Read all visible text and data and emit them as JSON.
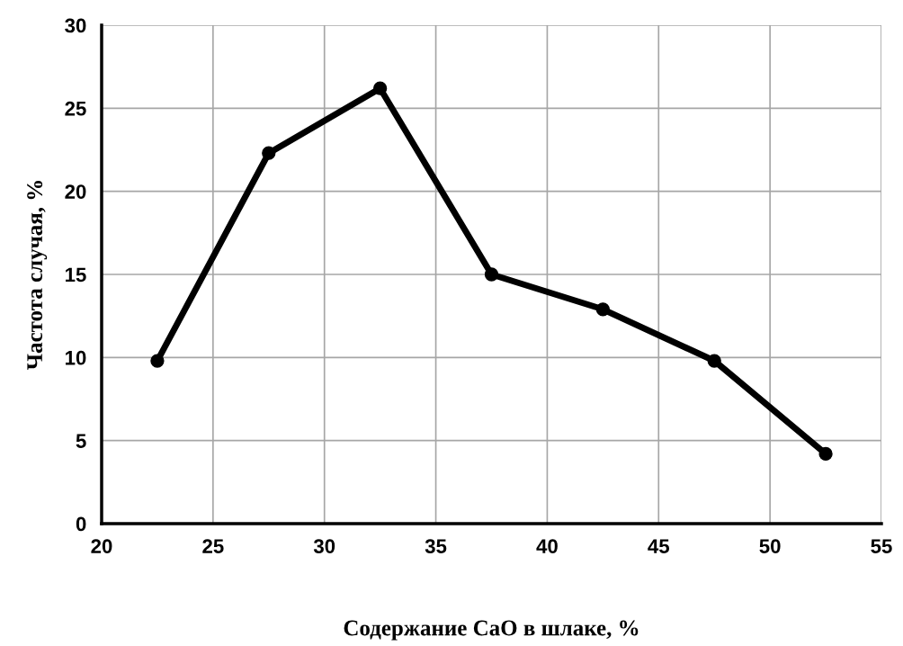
{
  "chart_data": {
    "type": "line",
    "xlabel": "Содержание CaO в шлаке, %",
    "ylabel": "Частота случая, %",
    "x": [
      22.5,
      27.5,
      32.5,
      37.5,
      42.5,
      47.5,
      52.5
    ],
    "series": [
      {
        "color": "#000000",
        "values": [
          9.8,
          22.3,
          26.2,
          15.0,
          12.9,
          9.8,
          4.2
        ]
      }
    ],
    "xlim": [
      20,
      55
    ],
    "xticks": [
      20,
      25,
      30,
      35,
      40,
      45,
      50,
      55
    ],
    "ylim": [
      0,
      30
    ],
    "yticks": [
      0,
      5,
      10,
      15,
      20,
      25,
      30
    ],
    "grid": true,
    "marker": "circle",
    "line_style": "solid",
    "legend": false
  }
}
